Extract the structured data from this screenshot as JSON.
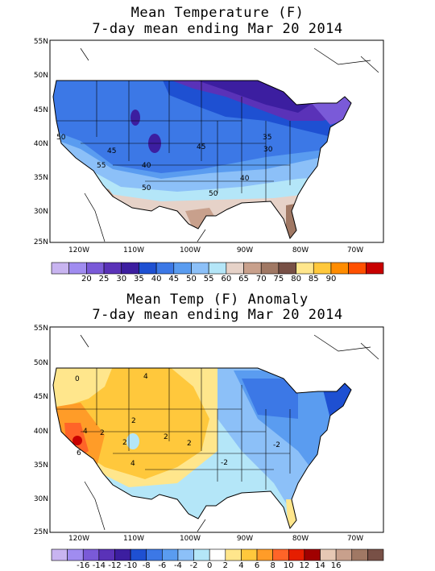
{
  "panels": [
    {
      "title_line1": "Mean Temperature (F)",
      "title_line2": "7-day mean ending Mar 20 2014",
      "lat_labels": [
        "55N",
        "50N",
        "45N",
        "40N",
        "35N",
        "30N",
        "25N"
      ],
      "lon_labels": [
        "120W",
        "110W",
        "100W",
        "90W",
        "80W",
        "70W"
      ],
      "colorbar": {
        "colors": [
          "#c8b4f0",
          "#a08cf0",
          "#7a5ad8",
          "#5a32b8",
          "#3c1ea0",
          "#1e50d2",
          "#3c78e6",
          "#5a9cf0",
          "#8cc0f8",
          "#b4e6f8",
          "#e6d2c8",
          "#c8a08c",
          "#a07864",
          "#785046",
          "#ffe68c",
          "#ffc83c",
          "#ff8c00",
          "#ff5000",
          "#c80000"
        ],
        "labels": [
          "20",
          "25",
          "30",
          "35",
          "40",
          "45",
          "50",
          "55",
          "60",
          "65",
          "70",
          "75",
          "80",
          "85",
          "90"
        ]
      },
      "contour_labels": [
        "50",
        "45",
        "55",
        "40",
        "50",
        "50",
        "45",
        "40",
        "35",
        "30"
      ]
    },
    {
      "title_line1": "Mean Temp (F) Anomaly",
      "title_line2": "7-day mean ending Mar 20 2014",
      "lat_labels": [
        "55N",
        "50N",
        "45N",
        "40N",
        "35N",
        "30N",
        "25N"
      ],
      "lon_labels": [
        "120W",
        "110W",
        "100W",
        "90W",
        "80W",
        "70W"
      ],
      "colorbar": {
        "colors": [
          "#c8b4f0",
          "#a08cf0",
          "#7a5ad8",
          "#5a32b8",
          "#3c1ea0",
          "#1e50d2",
          "#3c78e6",
          "#5a9cf0",
          "#8cc0f8",
          "#b4e6f8",
          "#ffffff",
          "#ffe68c",
          "#ffc83c",
          "#ff9c28",
          "#ff6428",
          "#e61e00",
          "#a00000",
          "#e6c8b4",
          "#c8a08c",
          "#a07864",
          "#785046"
        ],
        "labels": [
          "-16",
          "-14",
          "-12",
          "-10",
          "-8",
          "-6",
          "-4",
          "-2",
          "0",
          "2",
          "4",
          "6",
          "8",
          "10",
          "12",
          "14",
          "16"
        ]
      },
      "contour_labels": [
        "4",
        "0",
        "2",
        "2",
        "4",
        "2",
        "2",
        "2",
        "6",
        "4",
        "-2",
        "-2"
      ]
    }
  ]
}
